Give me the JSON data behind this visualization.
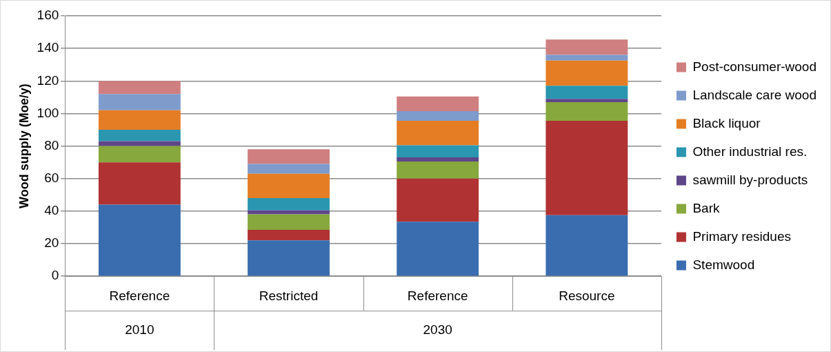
{
  "chart_data": {
    "type": "bar",
    "stacked": true,
    "ylabel": "Wood supply (Moe/y)",
    "categories": [
      "Reference",
      "Restricted",
      "Reference",
      "Resource"
    ],
    "annotations": [
      "2010",
      "2030"
    ],
    "ylim": [
      0,
      160
    ],
    "yticks": [
      0,
      20,
      40,
      60,
      80,
      100,
      120,
      140,
      160
    ],
    "grid": "y",
    "legend": "right",
    "series": [
      {
        "name": "Stemwood",
        "color": "#3a6db0",
        "values": [
          44,
          22,
          33.5,
          37.5
        ]
      },
      {
        "name": "Primary residues",
        "color": "#b03232",
        "values": [
          26,
          6.5,
          26.5,
          58
        ]
      },
      {
        "name": "Bark",
        "color": "#86a83c",
        "values": [
          10,
          9.5,
          10.5,
          11.5
        ]
      },
      {
        "name": "sawmill by-products",
        "color": "#5e4689",
        "values": [
          3,
          2.5,
          2.5,
          2
        ]
      },
      {
        "name": "Other industrial res.",
        "color": "#2a96b0",
        "values": [
          7,
          7.5,
          7.5,
          8
        ]
      },
      {
        "name": "Black liquor",
        "color": "#e57d25",
        "values": [
          12,
          15,
          15,
          15.5
        ]
      },
      {
        "name": "Landscale care wood",
        "color": "#7f9bcc",
        "values": [
          10,
          6,
          6,
          3.5
        ]
      },
      {
        "name": "Post-consumer-wood",
        "color": "#cf7f80",
        "values": [
          8,
          9,
          9,
          9.5
        ]
      }
    ]
  }
}
